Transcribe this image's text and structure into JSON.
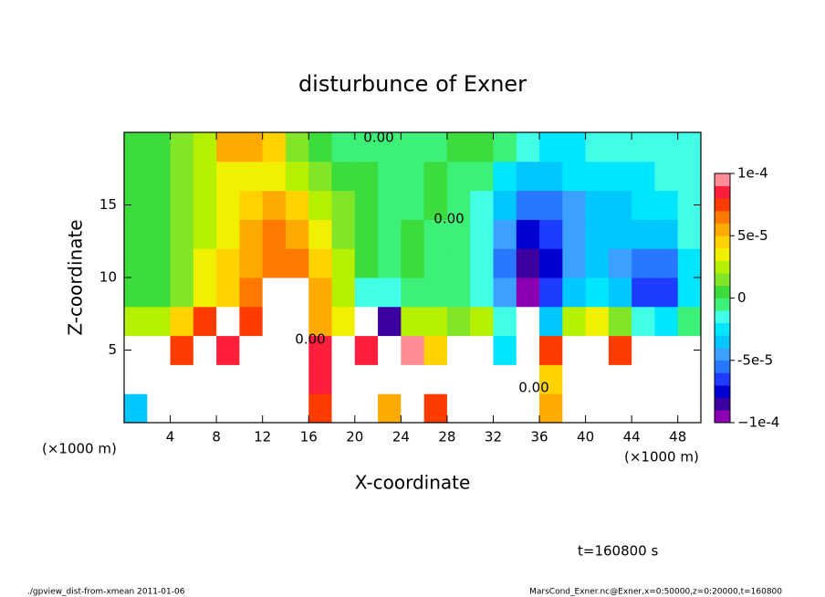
{
  "chart_data": {
    "type": "heatmap",
    "title": "disturbunce of Exner",
    "xlabel": "X-coordinate",
    "ylabel": "Z-coordinate",
    "xunit": "(×1000 m)",
    "xunit2": "(×1000 m)",
    "time_label": "t=160800 s",
    "footer_left": "./gpview_dist-from-xmean  2011-01-06",
    "footer_right": "MarsCond_Exner.nc@Exner,x=0:50000,z=0:20000,t=160800",
    "annotations": [
      "0.00",
      "0.00",
      "0.00",
      "0.00"
    ],
    "xlim": [
      0,
      50
    ],
    "ylim": [
      0,
      20
    ],
    "xticks": [
      4,
      8,
      12,
      16,
      20,
      24,
      28,
      32,
      36,
      40,
      44,
      48
    ],
    "yticks": [
      5,
      10,
      15
    ],
    "clim": [
      -0.0001,
      0.0001
    ],
    "cticks": [
      {
        "value": 0.0001,
        "label": "1e-4"
      },
      {
        "value": 5e-05,
        "label": "5e-5"
      },
      0,
      {
        "value": -5e-05,
        "label": "-5e-5"
      },
      {
        "value": -0.0001,
        "label": "−1e-4"
      }
    ],
    "levels": [
      -0.0001,
      -9e-05,
      -8e-05,
      -7e-05,
      -6e-05,
      -5e-05,
      -4e-05,
      -3e-05,
      -2e-05,
      -1e-05,
      0,
      1e-05,
      2e-05,
      3e-05,
      4e-05,
      5e-05,
      6e-05,
      7e-05,
      8e-05,
      9e-05,
      0.0001
    ],
    "colors": [
      "#8c00b4",
      "#3c00a0",
      "#0000d2",
      "#1e3cff",
      "#2878ff",
      "#3ca0ff",
      "#00c8ff",
      "#00e6ff",
      "#40ffe6",
      "#3cf078",
      "#3cdc3c",
      "#82e628",
      "#b4f000",
      "#f0f000",
      "#ffd200",
      "#ffaa00",
      "#ff7800",
      "#ff3c00",
      "#ff1e3c",
      "#ff8c96"
    ],
    "x": [
      1,
      3,
      5,
      7,
      9,
      11,
      13,
      15,
      17,
      19,
      21,
      23,
      25,
      27,
      29,
      31,
      33,
      35,
      37,
      39,
      41,
      43,
      45,
      47,
      49
    ],
    "y": [
      1,
      3,
      5,
      7,
      9,
      11,
      13,
      15,
      17,
      19
    ],
    "z": [
      [
        -3e-05,
        0.00012,
        -0.00012,
        -0.00012,
        0.00012,
        -0.00012,
        -0.00012,
        0.00012,
        8e-05,
        0.00012,
        0.00012,
        6e-05,
        0.00012,
        8e-05,
        0.00012,
        0.00012,
        0.00012,
        -0.00014,
        6e-05,
        -0.00012,
        0.00012,
        -0.00014,
        -0.00014,
        0.00012,
        0.00012
      ],
      [
        0.00012,
        0.00012,
        0.00012,
        -0.00012,
        -0.00012,
        -0.00012,
        -0.00012,
        0.00012,
        9e-05,
        0.00012,
        0.00012,
        0.00012,
        0.00012,
        0.00012,
        0.00012,
        0.00012,
        0.00012,
        -0.00014,
        5e-05,
        -0.00012,
        0.00012,
        -0.00012,
        -0.00012,
        0.00012,
        0.00012
      ],
      [
        0.00012,
        0.00011,
        8e-05,
        0.00012,
        9e-05,
        -0.00012,
        -0.00012,
        0.00012,
        9e-05,
        0.00012,
        9e-05,
        0.00012,
        0.0001,
        5e-05,
        0.00012,
        0.00012,
        -2e-05,
        -0.00014,
        8e-05,
        -0.00012,
        0.00012,
        8e-05,
        0.00012,
        0.00012,
        0.00012
      ],
      [
        3e-05,
        3e-05,
        5e-05,
        8e-05,
        0.00011,
        8e-05,
        0.00012,
        0.00012,
        6e-05,
        4e-05,
        -0.00012,
        -8e-05,
        3e-05,
        3e-05,
        2e-05,
        3e-05,
        -1e-05,
        0.00012,
        -3e-05,
        3e-05,
        4e-05,
        2e-05,
        -1e-05,
        -2e-05,
        0
      ],
      [
        1e-05,
        1e-05,
        2e-05,
        4e-05,
        5e-05,
        7e-05,
        0.00011,
        0.00011,
        6e-05,
        3e-05,
        -1e-05,
        -1e-05,
        0,
        0,
        0,
        -1e-05,
        -4e-05,
        -9e-05,
        -6e-05,
        -3e-05,
        -2e-05,
        -3e-05,
        -6e-05,
        -6e-05,
        -2e-05
      ],
      [
        1e-05,
        1e-05,
        2e-05,
        4e-05,
        5e-05,
        6e-05,
        7e-05,
        7e-05,
        5e-05,
        3e-05,
        1e-05,
        0,
        1e-05,
        0,
        0,
        -1e-05,
        -5e-05,
        -8e-05,
        -7e-05,
        -4e-05,
        -3e-05,
        -4e-05,
        -5e-05,
        -5e-05,
        -2e-05
      ],
      [
        1e-05,
        1e-05,
        2e-05,
        3e-05,
        4e-05,
        6e-05,
        7e-05,
        6e-05,
        4e-05,
        2e-05,
        1e-05,
        0,
        1e-05,
        0,
        0,
        -1e-05,
        -4e-05,
        -7e-05,
        -6e-05,
        -4e-05,
        -3e-05,
        -3e-05,
        -3e-05,
        -3e-05,
        -1e-05
      ],
      [
        1e-05,
        1e-05,
        2e-05,
        3e-05,
        4e-05,
        5e-05,
        6e-05,
        5e-05,
        3e-05,
        2e-05,
        1e-05,
        0,
        0,
        1e-05,
        0,
        -1e-05,
        -3e-05,
        -5e-05,
        -5e-05,
        -4e-05,
        -3e-05,
        -3e-05,
        -2e-05,
        -2e-05,
        -1e-05
      ],
      [
        1e-05,
        1e-05,
        2e-05,
        3e-05,
        4e-05,
        4e-05,
        4e-05,
        3e-05,
        2e-05,
        1e-05,
        1e-05,
        0,
        0,
        1e-05,
        0,
        0,
        -2e-05,
        -3e-05,
        -3e-05,
        -2e-05,
        -2e-05,
        -2e-05,
        -2e-05,
        -1e-05,
        -1e-05
      ],
      [
        1e-05,
        1e-05,
        2e-05,
        3e-05,
        6e-05,
        6e-05,
        5e-05,
        2e-05,
        1e-05,
        0,
        0,
        0,
        0,
        0,
        1e-05,
        1e-05,
        0,
        -1e-05,
        -2e-05,
        -2e-05,
        -1e-05,
        -1e-05,
        -1e-05,
        -1e-05,
        -1e-05
      ]
    ]
  }
}
